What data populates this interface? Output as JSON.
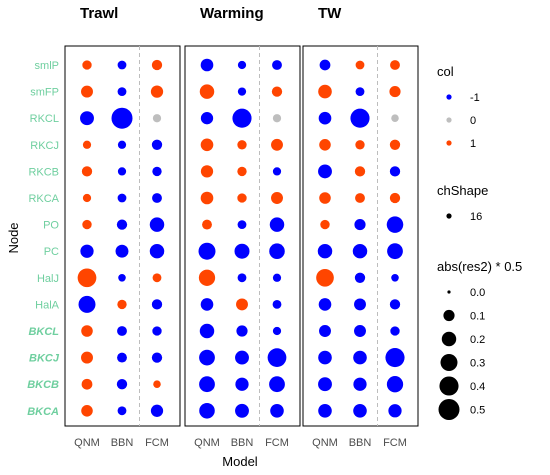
{
  "chart_data": {
    "type": "scatter",
    "xlabel": "Model",
    "ylabel": "Node",
    "facets": [
      "Trawl",
      "Warming",
      "TW"
    ],
    "models": [
      "QNM",
      "BBN",
      "FCM"
    ],
    "nodes": [
      "smlP",
      "smFP",
      "RKCL",
      "RKCJ",
      "RKCB",
      "RKCA",
      "PO",
      "PC",
      "HalJ",
      "HalA",
      "BKCL",
      "BKCJ",
      "BKCB",
      "BKCA"
    ],
    "bold_italic_nodes": [
      "BKCL",
      "BKCJ",
      "BKCB",
      "BKCA"
    ],
    "color_legend": {
      "title": "col",
      "entries": [
        {
          "label": "-1",
          "value": -1,
          "color": "#0000ff"
        },
        {
          "label": "0",
          "value": 0,
          "color": "#bebebe"
        },
        {
          "label": "1",
          "value": 1,
          "color": "#ff4500"
        }
      ]
    },
    "shape_legend": {
      "title": "chShape",
      "label": "16"
    },
    "size_legend": {
      "title": "abs(res2) * 0.5",
      "values": [
        0.0,
        0.1,
        0.2,
        0.3,
        0.4,
        0.5
      ],
      "labels": [
        "0.0",
        "0.1",
        "0.2",
        "0.3",
        "0.4",
        "0.5"
      ]
    },
    "size_domain": [
      0,
      0.5
    ],
    "points": {
      "Trawl": {
        "smlP": [
          [
            1,
            0.06
          ],
          [
            -1,
            0.05
          ],
          [
            1,
            0.08
          ]
        ],
        "smFP": [
          [
            1,
            0.12
          ],
          [
            -1,
            0.05
          ],
          [
            1,
            0.13
          ]
        ],
        "RKCL": [
          [
            -1,
            0.18
          ],
          [
            -1,
            0.5
          ],
          [
            0,
            0.04
          ]
        ],
        "RKCJ": [
          [
            1,
            0.04
          ],
          [
            -1,
            0.04
          ],
          [
            -1,
            0.08
          ]
        ],
        "RKCB": [
          [
            1,
            0.08
          ],
          [
            -1,
            0.04
          ],
          [
            -1,
            0.06
          ]
        ],
        "RKCA": [
          [
            1,
            0.04
          ],
          [
            -1,
            0.05
          ],
          [
            -1,
            0.07
          ]
        ],
        "PO": [
          [
            1,
            0.06
          ],
          [
            -1,
            0.08
          ],
          [
            -1,
            0.2
          ]
        ],
        "PC": [
          [
            -1,
            0.16
          ],
          [
            -1,
            0.15
          ],
          [
            -1,
            0.2
          ]
        ],
        "HalJ": [
          [
            1,
            0.38
          ],
          [
            -1,
            0.03
          ],
          [
            1,
            0.05
          ]
        ],
        "HalA": [
          [
            -1,
            0.3
          ],
          [
            1,
            0.06
          ],
          [
            -1,
            0.08
          ]
        ],
        "BKCL": [
          [
            1,
            0.11
          ],
          [
            -1,
            0.07
          ],
          [
            -1,
            0.06
          ]
        ],
        "BKCJ": [
          [
            1,
            0.12
          ],
          [
            -1,
            0.07
          ],
          [
            -1,
            0.08
          ]
        ],
        "BKCB": [
          [
            1,
            0.09
          ],
          [
            -1,
            0.08
          ],
          [
            1,
            0.03
          ]
        ],
        "BKCA": [
          [
            1,
            0.11
          ],
          [
            -1,
            0.05
          ],
          [
            -1,
            0.13
          ]
        ]
      },
      "Warming": {
        "smlP": [
          [
            -1,
            0.14
          ],
          [
            -1,
            0.04
          ],
          [
            -1,
            0.07
          ]
        ],
        "smFP": [
          [
            1,
            0.2
          ],
          [
            -1,
            0.04
          ],
          [
            1,
            0.08
          ]
        ],
        "RKCL": [
          [
            -1,
            0.13
          ],
          [
            -1,
            0.4
          ],
          [
            0,
            0.04
          ]
        ],
        "RKCJ": [
          [
            1,
            0.14
          ],
          [
            1,
            0.06
          ],
          [
            1,
            0.12
          ]
        ],
        "RKCB": [
          [
            1,
            0.13
          ],
          [
            1,
            0.06
          ],
          [
            -1,
            0.04
          ]
        ],
        "RKCA": [
          [
            1,
            0.14
          ],
          [
            1,
            0.06
          ],
          [
            1,
            0.12
          ]
        ],
        "PO": [
          [
            1,
            0.07
          ],
          [
            -1,
            0.05
          ],
          [
            -1,
            0.2
          ]
        ],
        "PC": [
          [
            -1,
            0.3
          ],
          [
            -1,
            0.22
          ],
          [
            -1,
            0.24
          ]
        ],
        "HalJ": [
          [
            1,
            0.27
          ],
          [
            -1,
            0.05
          ],
          [
            -1,
            0.04
          ]
        ],
        "HalA": [
          [
            -1,
            0.14
          ],
          [
            1,
            0.12
          ],
          [
            -1,
            0.05
          ]
        ],
        "BKCL": [
          [
            -1,
            0.2
          ],
          [
            -1,
            0.1
          ],
          [
            -1,
            0.04
          ]
        ],
        "BKCJ": [
          [
            -1,
            0.25
          ],
          [
            -1,
            0.18
          ],
          [
            -1,
            0.38
          ]
        ],
        "BKCB": [
          [
            -1,
            0.25
          ],
          [
            -1,
            0.16
          ],
          [
            -1,
            0.25
          ]
        ],
        "BKCA": [
          [
            -1,
            0.24
          ],
          [
            -1,
            0.18
          ],
          [
            -1,
            0.17
          ]
        ]
      },
      "TW": {
        "smlP": [
          [
            -1,
            0.09
          ],
          [
            1,
            0.05
          ],
          [
            1,
            0.07
          ]
        ],
        "smFP": [
          [
            1,
            0.17
          ],
          [
            -1,
            0.05
          ],
          [
            1,
            0.1
          ]
        ],
        "RKCL": [
          [
            -1,
            0.14
          ],
          [
            -1,
            0.4
          ],
          [
            0,
            0.03
          ]
        ],
        "RKCJ": [
          [
            1,
            0.11
          ],
          [
            1,
            0.06
          ],
          [
            1,
            0.08
          ]
        ],
        "RKCB": [
          [
            -1,
            0.18
          ],
          [
            1,
            0.08
          ],
          [
            -1,
            0.08
          ]
        ],
        "RKCA": [
          [
            1,
            0.11
          ],
          [
            1,
            0.07
          ],
          [
            1,
            0.08
          ]
        ],
        "PO": [
          [
            1,
            0.06
          ],
          [
            -1,
            0.1
          ],
          [
            -1,
            0.28
          ]
        ],
        "PC": [
          [
            -1,
            0.2
          ],
          [
            -1,
            0.2
          ],
          [
            -1,
            0.25
          ]
        ],
        "HalJ": [
          [
            1,
            0.33
          ],
          [
            -1,
            0.08
          ],
          [
            -1,
            0.03
          ]
        ],
        "HalA": [
          [
            -1,
            0.14
          ],
          [
            -1,
            0.12
          ],
          [
            -1,
            0.08
          ]
        ],
        "BKCL": [
          [
            -1,
            0.12
          ],
          [
            -1,
            0.12
          ],
          [
            -1,
            0.06
          ]
        ],
        "BKCJ": [
          [
            -1,
            0.17
          ],
          [
            -1,
            0.17
          ],
          [
            -1,
            0.4
          ]
        ],
        "BKCB": [
          [
            -1,
            0.18
          ],
          [
            -1,
            0.16
          ],
          [
            -1,
            0.27
          ]
        ],
        "BKCA": [
          [
            -1,
            0.17
          ],
          [
            -1,
            0.17
          ],
          [
            -1,
            0.16
          ]
        ]
      }
    }
  }
}
